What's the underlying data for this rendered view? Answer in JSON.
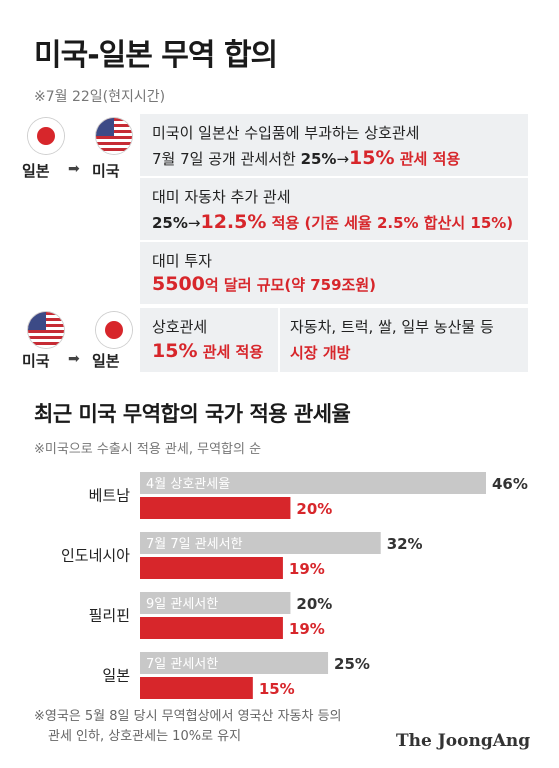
{
  "header": {
    "title": "미국-일본 무역 합의",
    "date_note": "※7월 22일(현지시간)"
  },
  "section_jp_to_us": {
    "from_label": "일본",
    "to_label": "미국",
    "flag_from_icon": "japan-flag-icon",
    "flag_to_icon": "usa-flag-icon",
    "arrow": "➡",
    "items": [
      {
        "line1": "미국이 일본산 수입품에 부과하는 상호관세",
        "line2_prefix": "7월 7일 공개 관세서한 ",
        "from_value": "25%",
        "arrow": "→",
        "to_value": "15%",
        "suffix": " 관세 적용"
      },
      {
        "line1": "대미 자동차 추가 관세",
        "from_value": "25%",
        "arrow": "→",
        "to_value": "12.5%",
        "suffix": " 적용 (기존 세율 2.5% 합산시 15%)"
      },
      {
        "line1": "대미 투자",
        "amount": "5500",
        "unit": "억 달러 규모",
        "note": "(약 759조원)"
      }
    ]
  },
  "section_us_to_jp": {
    "from_label": "미국",
    "to_label": "일본",
    "flag_from_icon": "usa-flag-icon",
    "flag_to_icon": "japan-flag-icon",
    "arrow": "➡",
    "left": {
      "line1": "상호관세",
      "value": "15%",
      "suffix": " 관세 적용"
    },
    "right": {
      "line1": "자동차, 트럭, 쌀, 일부 농산물 등",
      "value": "시장 개방"
    }
  },
  "chart_section": {
    "title": "최근 미국 무역합의 국가 적용 관세율",
    "note": "※미국으로 수출시 적용 관세, 무역합의 순"
  },
  "chart_data": {
    "type": "bar",
    "orientation": "horizontal",
    "categories": [
      "베트남",
      "인도네시아",
      "필리핀",
      "일본"
    ],
    "series": [
      {
        "values": [
          46,
          32,
          20,
          25
        ],
        "bar_labels": [
          "4월 상호관세율",
          "7월 7일 관세서한",
          "9일 관세서한",
          "7일 관세서한"
        ],
        "color": "#c8c8c8"
      },
      {
        "values": [
          20,
          19,
          19,
          15
        ],
        "color": "#d7262b"
      }
    ],
    "value_format": "%",
    "xlim": [
      0,
      50
    ],
    "grid": false
  },
  "footer": {
    "note_line1": "※영국은 5월 8일 당시 무역협상에서 영국산 자동차 등의",
    "note_line2": "관세 인하, 상호관세는 10%로 유지",
    "credit": "The JoongAng"
  }
}
